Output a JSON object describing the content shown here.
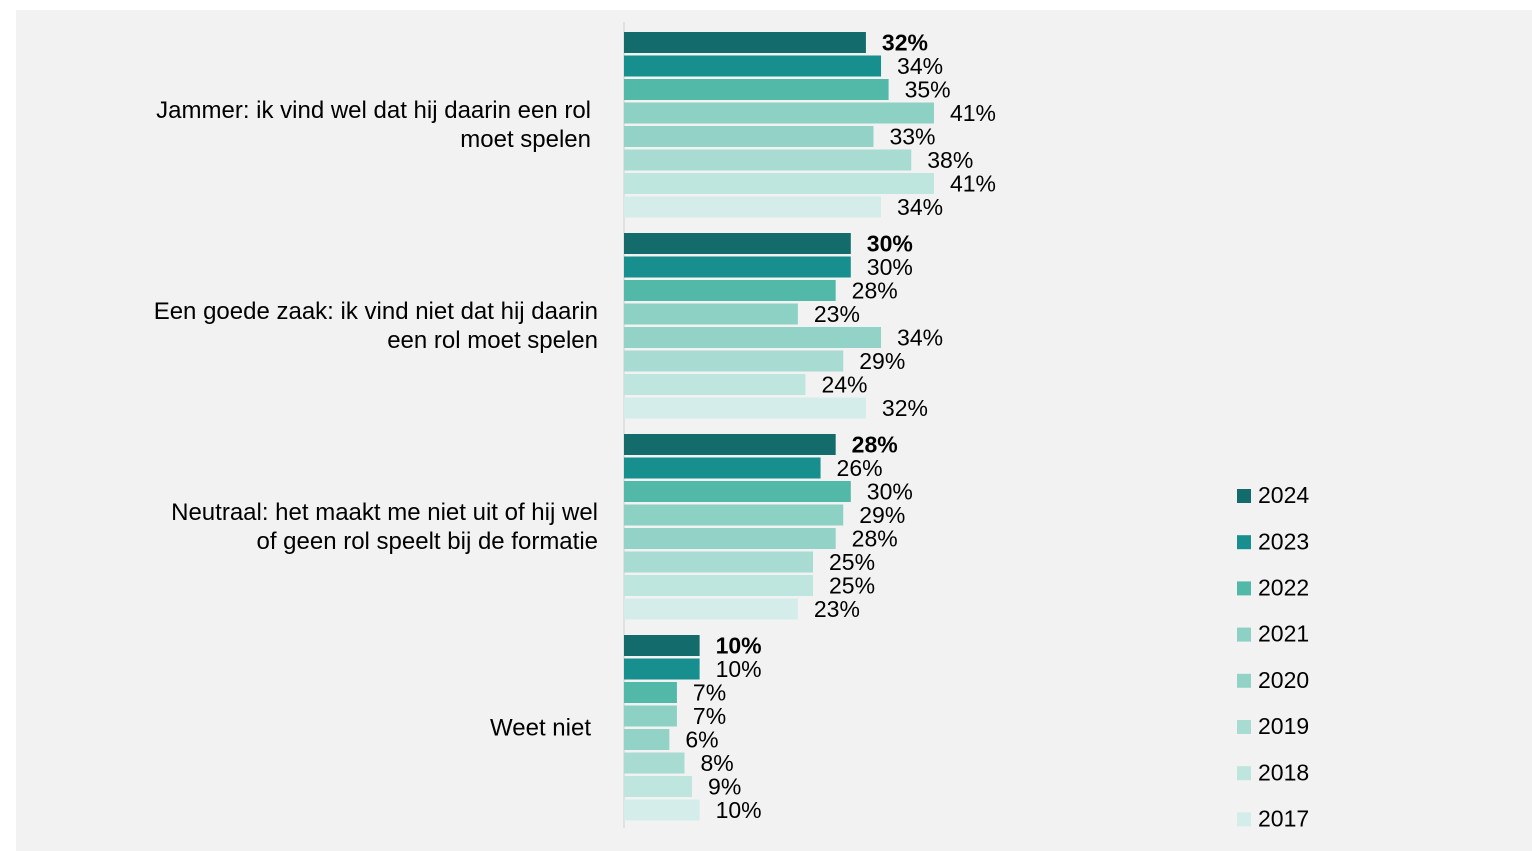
{
  "chart_data": {
    "type": "bar",
    "orientation": "horizontal",
    "categories": [
      "Jammer: ik vind wel dat hij daarin een rol moet spelen",
      "Een goede zaak: ik vind niet dat hij daarin een rol moet spelen",
      "Neutraal: het maakt me niet uit of hij wel of geen rol speelt bij de formatie",
      "Weet niet"
    ],
    "series": [
      {
        "name": "2024",
        "color": "#136b6b",
        "values": [
          32,
          30,
          28,
          10
        ],
        "value_labels": [
          "32%",
          "30%",
          "28%",
          "10%"
        ]
      },
      {
        "name": "2023",
        "color": "#178f8f",
        "values": [
          34,
          30,
          26,
          10
        ],
        "value_labels": [
          "34%",
          "30%",
          "26%",
          "10%"
        ]
      },
      {
        "name": "2022",
        "color": "#52b9a9",
        "values": [
          35,
          28,
          30,
          7
        ],
        "value_labels": [
          "35%",
          "28%",
          "30%",
          "7%"
        ]
      },
      {
        "name": "2021",
        "color": "#8dd1c4",
        "values": [
          41,
          23,
          29,
          7
        ],
        "value_labels": [
          "41%",
          "23%",
          "29%",
          "7%"
        ]
      },
      {
        "name": "2020",
        "color": "#93d3c7",
        "values": [
          33,
          34,
          28,
          6
        ],
        "value_labels": [
          "33%",
          "34%",
          "28%",
          "6%"
        ]
      },
      {
        "name": "2019",
        "color": "#a8dbd2",
        "values": [
          38,
          29,
          25,
          8
        ],
        "value_labels": [
          "38%",
          "29%",
          "25%",
          "8%"
        ]
      },
      {
        "name": "2018",
        "color": "#bee5de",
        "values": [
          41,
          24,
          25,
          9
        ],
        "value_labels": [
          "41%",
          "24%",
          "25%",
          "9%"
        ]
      },
      {
        "name": "2017",
        "color": "#d4edea",
        "values": [
          34,
          32,
          23,
          10
        ],
        "value_labels": [
          "34%",
          "32%",
          "23%",
          "10%"
        ]
      }
    ],
    "legend": "right"
  }
}
